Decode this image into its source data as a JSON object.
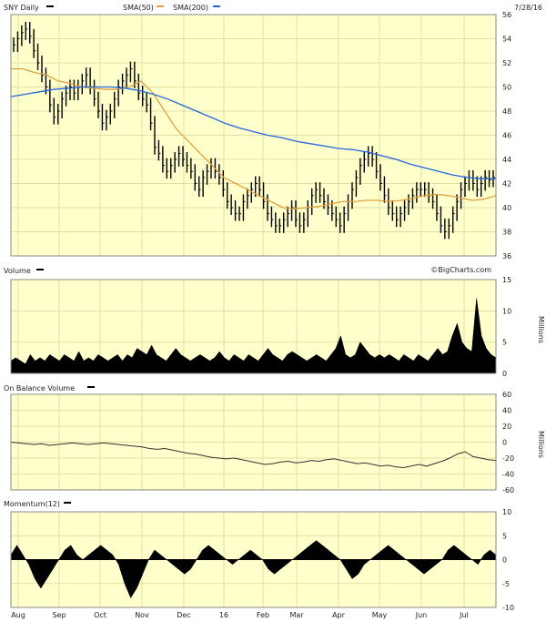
{
  "header": {
    "symbol_label": "SNY Daily",
    "sma50_label": "SMA(50)",
    "sma200_label": "SMA(200)",
    "date_label": "7/28/16",
    "watermark": "©BigCharts.com"
  },
  "colors": {
    "plot_bg": "#ffffcc",
    "grid": "#e0dfa4",
    "price_bar": "#000000",
    "sma50": "#e0a040",
    "sma200": "#2266dd",
    "area": "#000000"
  },
  "chart_data": [
    {
      "type": "ohlc",
      "name": "price",
      "title": "SNY Daily",
      "ylim": [
        36,
        56
      ],
      "y_ticks": [
        "36",
        "38",
        "40",
        "42",
        "44",
        "46",
        "48",
        "50",
        "52",
        "54",
        "56"
      ],
      "x_ticks": [
        "Aug",
        "Sep",
        "Oct",
        "Nov",
        "Dec",
        "16",
        "Feb",
        "Mar",
        "Apr",
        "May",
        "Jun",
        "Jul"
      ],
      "close": [
        53.5,
        54.0,
        54.5,
        54.8,
        54.2,
        53.0,
        52.0,
        51.0,
        50.0,
        48.5,
        47.5,
        48.0,
        49.0,
        49.5,
        50.0,
        49.5,
        50.0,
        50.5,
        51.0,
        50.0,
        49.0,
        48.0,
        47.0,
        47.5,
        48.0,
        49.0,
        50.0,
        50.5,
        51.0,
        51.5,
        50.5,
        49.5,
        49.0,
        48.5,
        47.0,
        45.0,
        44.5,
        43.5,
        43.0,
        43.5,
        44.0,
        44.5,
        44.0,
        43.5,
        43.0,
        42.0,
        41.5,
        42.5,
        43.0,
        43.5,
        43.0,
        42.5,
        41.5,
        40.5,
        40.0,
        39.5,
        39.5,
        40.5,
        41.0,
        41.5,
        42.0,
        41.5,
        40.5,
        39.5,
        39.0,
        38.5,
        38.5,
        39.0,
        39.5,
        40.0,
        39.0,
        38.5,
        39.0,
        40.0,
        41.0,
        41.5,
        41.0,
        40.5,
        40.0,
        39.5,
        39.0,
        38.5,
        39.5,
        40.5,
        41.5,
        42.5,
        43.5,
        44.0,
        44.5,
        44.0,
        43.0,
        42.0,
        41.0,
        40.0,
        39.5,
        39.0,
        39.5,
        40.0,
        40.5,
        41.0,
        41.5,
        41.5,
        41.5,
        41.0,
        40.5,
        39.5,
        38.5,
        38.0,
        38.5,
        39.5,
        40.5,
        41.5,
        42.0,
        42.5,
        42.0,
        41.5,
        42.0,
        42.5,
        42.3,
        42.5
      ],
      "series": [
        {
          "name": "SMA(50)",
          "values": [
            51.5,
            51.5,
            51.2,
            51.0,
            50.5,
            50.3,
            50.0,
            49.9,
            49.8,
            49.8,
            50.0,
            50.5,
            49.5,
            48.0,
            46.5,
            45.5,
            44.5,
            43.5,
            42.5,
            42.0,
            41.5,
            41.0,
            40.5,
            40.0,
            39.9,
            40.0,
            40.1,
            40.3,
            40.5,
            40.5,
            40.6,
            40.6,
            40.5,
            40.6,
            40.8,
            41.0,
            41.1,
            41.0,
            40.8,
            40.6,
            40.7,
            41.0
          ]
        },
        {
          "name": "SMA(200)",
          "values": [
            49.2,
            49.4,
            49.6,
            49.8,
            49.9,
            50.0,
            50.0,
            50.0,
            49.9,
            49.7,
            49.4,
            49.0,
            48.5,
            48.0,
            47.5,
            47.0,
            46.6,
            46.3,
            46.0,
            45.8,
            45.5,
            45.3,
            45.1,
            44.9,
            44.8,
            44.6,
            44.3,
            44.0,
            43.6,
            43.3,
            43.0,
            42.7,
            42.5,
            42.4,
            42.4
          ]
        }
      ]
    },
    {
      "type": "area",
      "name": "volume",
      "title": "Volume",
      "ylabel": "Millions",
      "ylim": [
        0,
        15
      ],
      "y_ticks": [
        "0",
        "5",
        "10",
        "15"
      ],
      "values": [
        2,
        2.5,
        2,
        1.5,
        3,
        2,
        2.5,
        2,
        3,
        2.5,
        2,
        3,
        2.5,
        2,
        3.5,
        2,
        2.5,
        2,
        3,
        2.5,
        2,
        2.5,
        3,
        2,
        3,
        2.5,
        4,
        3.5,
        3,
        4.5,
        3,
        2.5,
        2,
        3,
        4,
        3,
        2.5,
        2,
        2.5,
        3,
        2.5,
        2,
        2.5,
        3.5,
        2.5,
        2,
        3,
        2.5,
        2,
        3,
        2.5,
        2,
        3,
        4,
        3,
        2.5,
        2,
        3,
        3.5,
        3,
        2.5,
        2,
        2.5,
        3,
        2.5,
        2,
        3,
        4,
        6,
        3,
        2.5,
        3,
        5,
        4,
        3,
        2.5,
        3,
        2.5,
        3,
        2.5,
        2,
        3,
        2.5,
        2,
        3,
        2.5,
        2,
        3,
        4,
        3,
        3.5,
        6,
        8,
        5,
        4,
        3.5,
        12,
        6,
        4,
        3,
        2.5
      ]
    },
    {
      "type": "line",
      "name": "obv",
      "title": "On Balance Volume",
      "ylabel": "Millions",
      "ylim": [
        -60,
        60
      ],
      "y_ticks": [
        "60",
        "40",
        "20",
        "0",
        "-20",
        "-40",
        "-60"
      ],
      "values": [
        0,
        -1,
        -2,
        -3,
        -2,
        -4,
        -3,
        -2,
        -1,
        -2,
        -3,
        -2,
        -1,
        -2,
        -3,
        -4,
        -5,
        -6,
        -8,
        -9,
        -8,
        -10,
        -12,
        -14,
        -15,
        -17,
        -19,
        -20,
        -21,
        -20,
        -22,
        -24,
        -26,
        -28,
        -27,
        -25,
        -24,
        -26,
        -25,
        -23,
        -24,
        -22,
        -21,
        -23,
        -25,
        -27,
        -26,
        -28,
        -30,
        -29,
        -31,
        -32,
        -30,
        -28,
        -30,
        -27,
        -24,
        -20,
        -15,
        -12,
        -18,
        -20,
        -22,
        -23
      ]
    },
    {
      "type": "area",
      "name": "momentum",
      "title": "Momentum(12)",
      "ylim": [
        -10,
        10
      ],
      "y_ticks": [
        "10",
        "5",
        "0",
        "-5",
        "-10"
      ],
      "values": [
        1,
        3,
        1,
        -1,
        -4,
        -6,
        -4,
        -2,
        0,
        2,
        3,
        1,
        0,
        1,
        2,
        3,
        2,
        1,
        -1,
        -5,
        -8,
        -6,
        -3,
        0,
        2,
        1,
        0,
        -1,
        -2,
        -3,
        -2,
        0,
        2,
        3,
        2,
        1,
        0,
        -1,
        0,
        1,
        2,
        1,
        0,
        -2,
        -3,
        -2,
        -1,
        0,
        1,
        2,
        3,
        4,
        3,
        2,
        1,
        0,
        -2,
        -4,
        -3,
        -1,
        0,
        1,
        2,
        3,
        2,
        1,
        0,
        -1,
        -2,
        -3,
        -2,
        -1,
        0,
        2,
        3,
        2,
        1,
        0,
        -1,
        1,
        2,
        1
      ]
    }
  ]
}
